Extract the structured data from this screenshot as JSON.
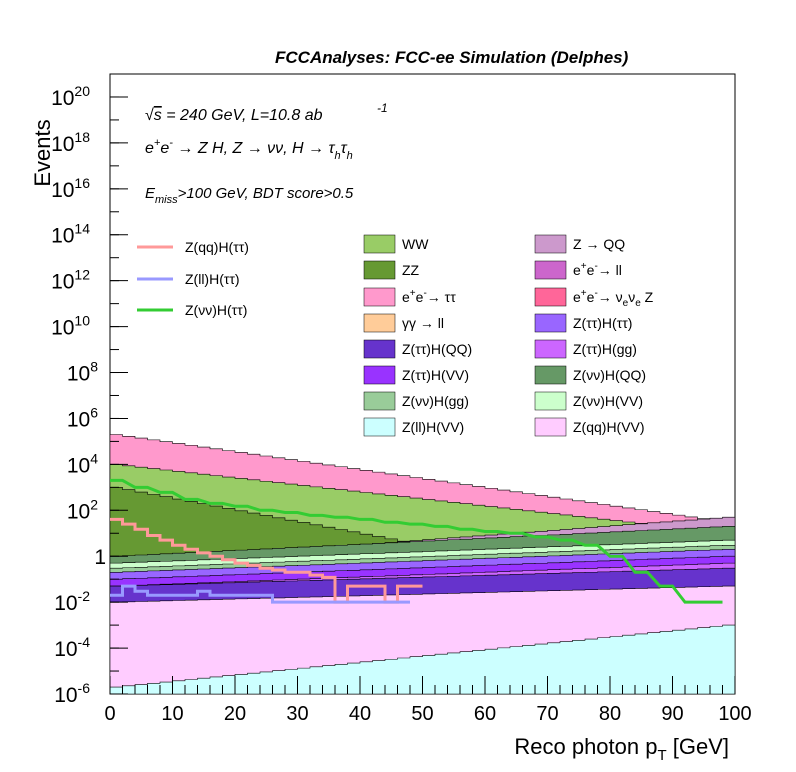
{
  "chart_data": {
    "type": "area",
    "title": "FCCAnalyses: FCC-ee Simulation (Delphes)",
    "xlabel": "Reco photon p_T [GeV]",
    "ylabel": "Events",
    "xlim": [
      0,
      100
    ],
    "ylim": [
      1e-06,
      1e+21
    ],
    "y_scale": "log",
    "x_ticks": [
      0,
      10,
      20,
      30,
      40,
      50,
      60,
      70,
      80,
      90,
      100
    ],
    "y_tick_labels": [
      "10^-6",
      "10^-4",
      "10^-2",
      "1",
      "10^2",
      "10^4",
      "10^6",
      "10^8",
      "10^10",
      "10^12",
      "10^14",
      "10^16",
      "10^18",
      "10^20"
    ],
    "annotations": {
      "energy_label": "√s = 240 GeV, L=10.8 ab",
      "energy_sup": "-1",
      "process_label": "e+e- → Z H, Z → νν, H → τhτh",
      "selection_label": "E_miss>100 GeV, BDT score>0.5"
    },
    "grid": false,
    "legend_position": "inside-upper",
    "bin_width": 2,
    "stacked_backgrounds": [
      {
        "name": "Z(ll)H(VV)",
        "color": "#ccffff",
        "approx_level": [
          2e-06,
          0.001
        ]
      },
      {
        "name": "Z(qq)H(VV)",
        "color": "#ffccff",
        "approx_level": [
          0.01,
          0.05
        ]
      },
      {
        "name": "Z(ττ)H(QQ)",
        "color": "#6633cc",
        "approx_level": [
          0.05,
          0.3
        ]
      },
      {
        "name": "Z(ττ)H(gg)",
        "color": "#cc66ff",
        "approx_level": [
          0.05,
          0.5
        ]
      },
      {
        "name": "Z(ττ)H(VV)",
        "color": "#9933ff",
        "approx_level": [
          0.1,
          1
        ]
      },
      {
        "name": "Z(ττ)H(ττ)",
        "color": "#9966ff",
        "approx_level": [
          0.2,
          2
        ]
      },
      {
        "name": "Z(νν)H(gg)",
        "color": "#99cc99",
        "approx_level": [
          0.3,
          3
        ]
      },
      {
        "name": "Z(νν)H(VV)",
        "color": "#ccffcc",
        "approx_level": [
          0.5,
          5
        ]
      },
      {
        "name": "Z(νν)H(QQ)",
        "color": "#669966",
        "approx_level": [
          1,
          20
        ]
      },
      {
        "name": "γγ → ll",
        "color": "#ffcc99",
        "approx_level": [
          0.01,
          0.5
        ]
      },
      {
        "name": "e+e-→ νeνe Z",
        "color": "#ff6699",
        "approx_level": [
          0.01,
          1
        ]
      },
      {
        "name": "e+e- → ll",
        "color": "#cc66cc",
        "approx_level": [
          0.1,
          10
        ]
      },
      {
        "name": "Z → QQ",
        "color": "#cc99cc",
        "approx_level": [
          0.5,
          50
        ]
      },
      {
        "name": "ZZ",
        "color": "#669933",
        "approx_level": [
          1000.0,
          0.01
        ]
      },
      {
        "name": "WW",
        "color": "#99cc66",
        "approx_level": [
          10000.0,
          10.0
        ]
      },
      {
        "name": "e+e-→ ττ",
        "color": "#ff99cc",
        "approx_level": [
          200000.0,
          30
        ]
      }
    ],
    "series": [
      {
        "name": "Z(qq)H(ττ)",
        "color": "#ff9999",
        "style": "line",
        "x": [
          2,
          4,
          6,
          8,
          10,
          12,
          14,
          16,
          18,
          20,
          22,
          24,
          26,
          28,
          30,
          32,
          34,
          36,
          38,
          40,
          42,
          44,
          46,
          48,
          50
        ],
        "values": [
          40,
          25,
          15,
          8,
          5,
          3,
          2,
          1.4,
          1,
          0.7,
          0.5,
          0.4,
          0.3,
          0.25,
          0.2,
          0.2,
          0.15,
          0.12,
          0.01,
          0.05,
          0.05,
          0.05,
          0.01,
          0.05,
          0.05
        ]
      },
      {
        "name": "Z(ll)H(ττ)",
        "color": "#9999ff",
        "style": "line",
        "x": [
          2,
          4,
          6,
          8,
          10,
          12,
          14,
          16,
          18,
          20,
          22,
          24,
          26,
          28,
          30,
          32,
          34,
          36,
          38,
          40,
          42,
          44,
          46,
          48
        ],
        "values": [
          0.02,
          0.05,
          0.03,
          0.02,
          0.02,
          0.02,
          0.02,
          0.03,
          0.02,
          0.02,
          0.02,
          0.02,
          0.02,
          0.01,
          0.01,
          0.01,
          0.01,
          0.01,
          0.01,
          0.01,
          0.01,
          0.01,
          0.01,
          0.01
        ]
      },
      {
        "name": "Z(νν)H(ττ)",
        "color": "#33cc33",
        "style": "line",
        "x": [
          2,
          6,
          10,
          14,
          18,
          22,
          26,
          30,
          34,
          38,
          42,
          46,
          50,
          54,
          58,
          62,
          66,
          70,
          74,
          78,
          82,
          86,
          90,
          94,
          98
        ],
        "values": [
          2000,
          1000,
          600,
          300,
          200,
          150,
          100,
          80,
          60,
          50,
          40,
          30,
          25,
          20,
          15,
          12,
          10,
          7,
          5,
          3,
          1,
          0.2,
          0.05,
          0.01,
          0.01
        ]
      }
    ],
    "legend_left": [
      "Z(qq)H(ττ)",
      "Z(ll)H(ττ)",
      "Z(νν)H(ττ)"
    ],
    "legend_right_col1": [
      "WW",
      "ZZ",
      "e+e-→ ττ",
      "γγ → ll",
      "Z(ττ)H(QQ)",
      "Z(ττ)H(VV)",
      "Z(νν)H(gg)",
      "Z(ll)H(VV)"
    ],
    "legend_right_col2": [
      "Z → QQ",
      "e+e- → ll",
      "e+e-→ νeνe Z",
      "Z(ττ)H(ττ)",
      "Z(ττ)H(gg)",
      "Z(νν)H(QQ)",
      "Z(νν)H(VV)",
      "Z(qq)H(VV)"
    ]
  }
}
